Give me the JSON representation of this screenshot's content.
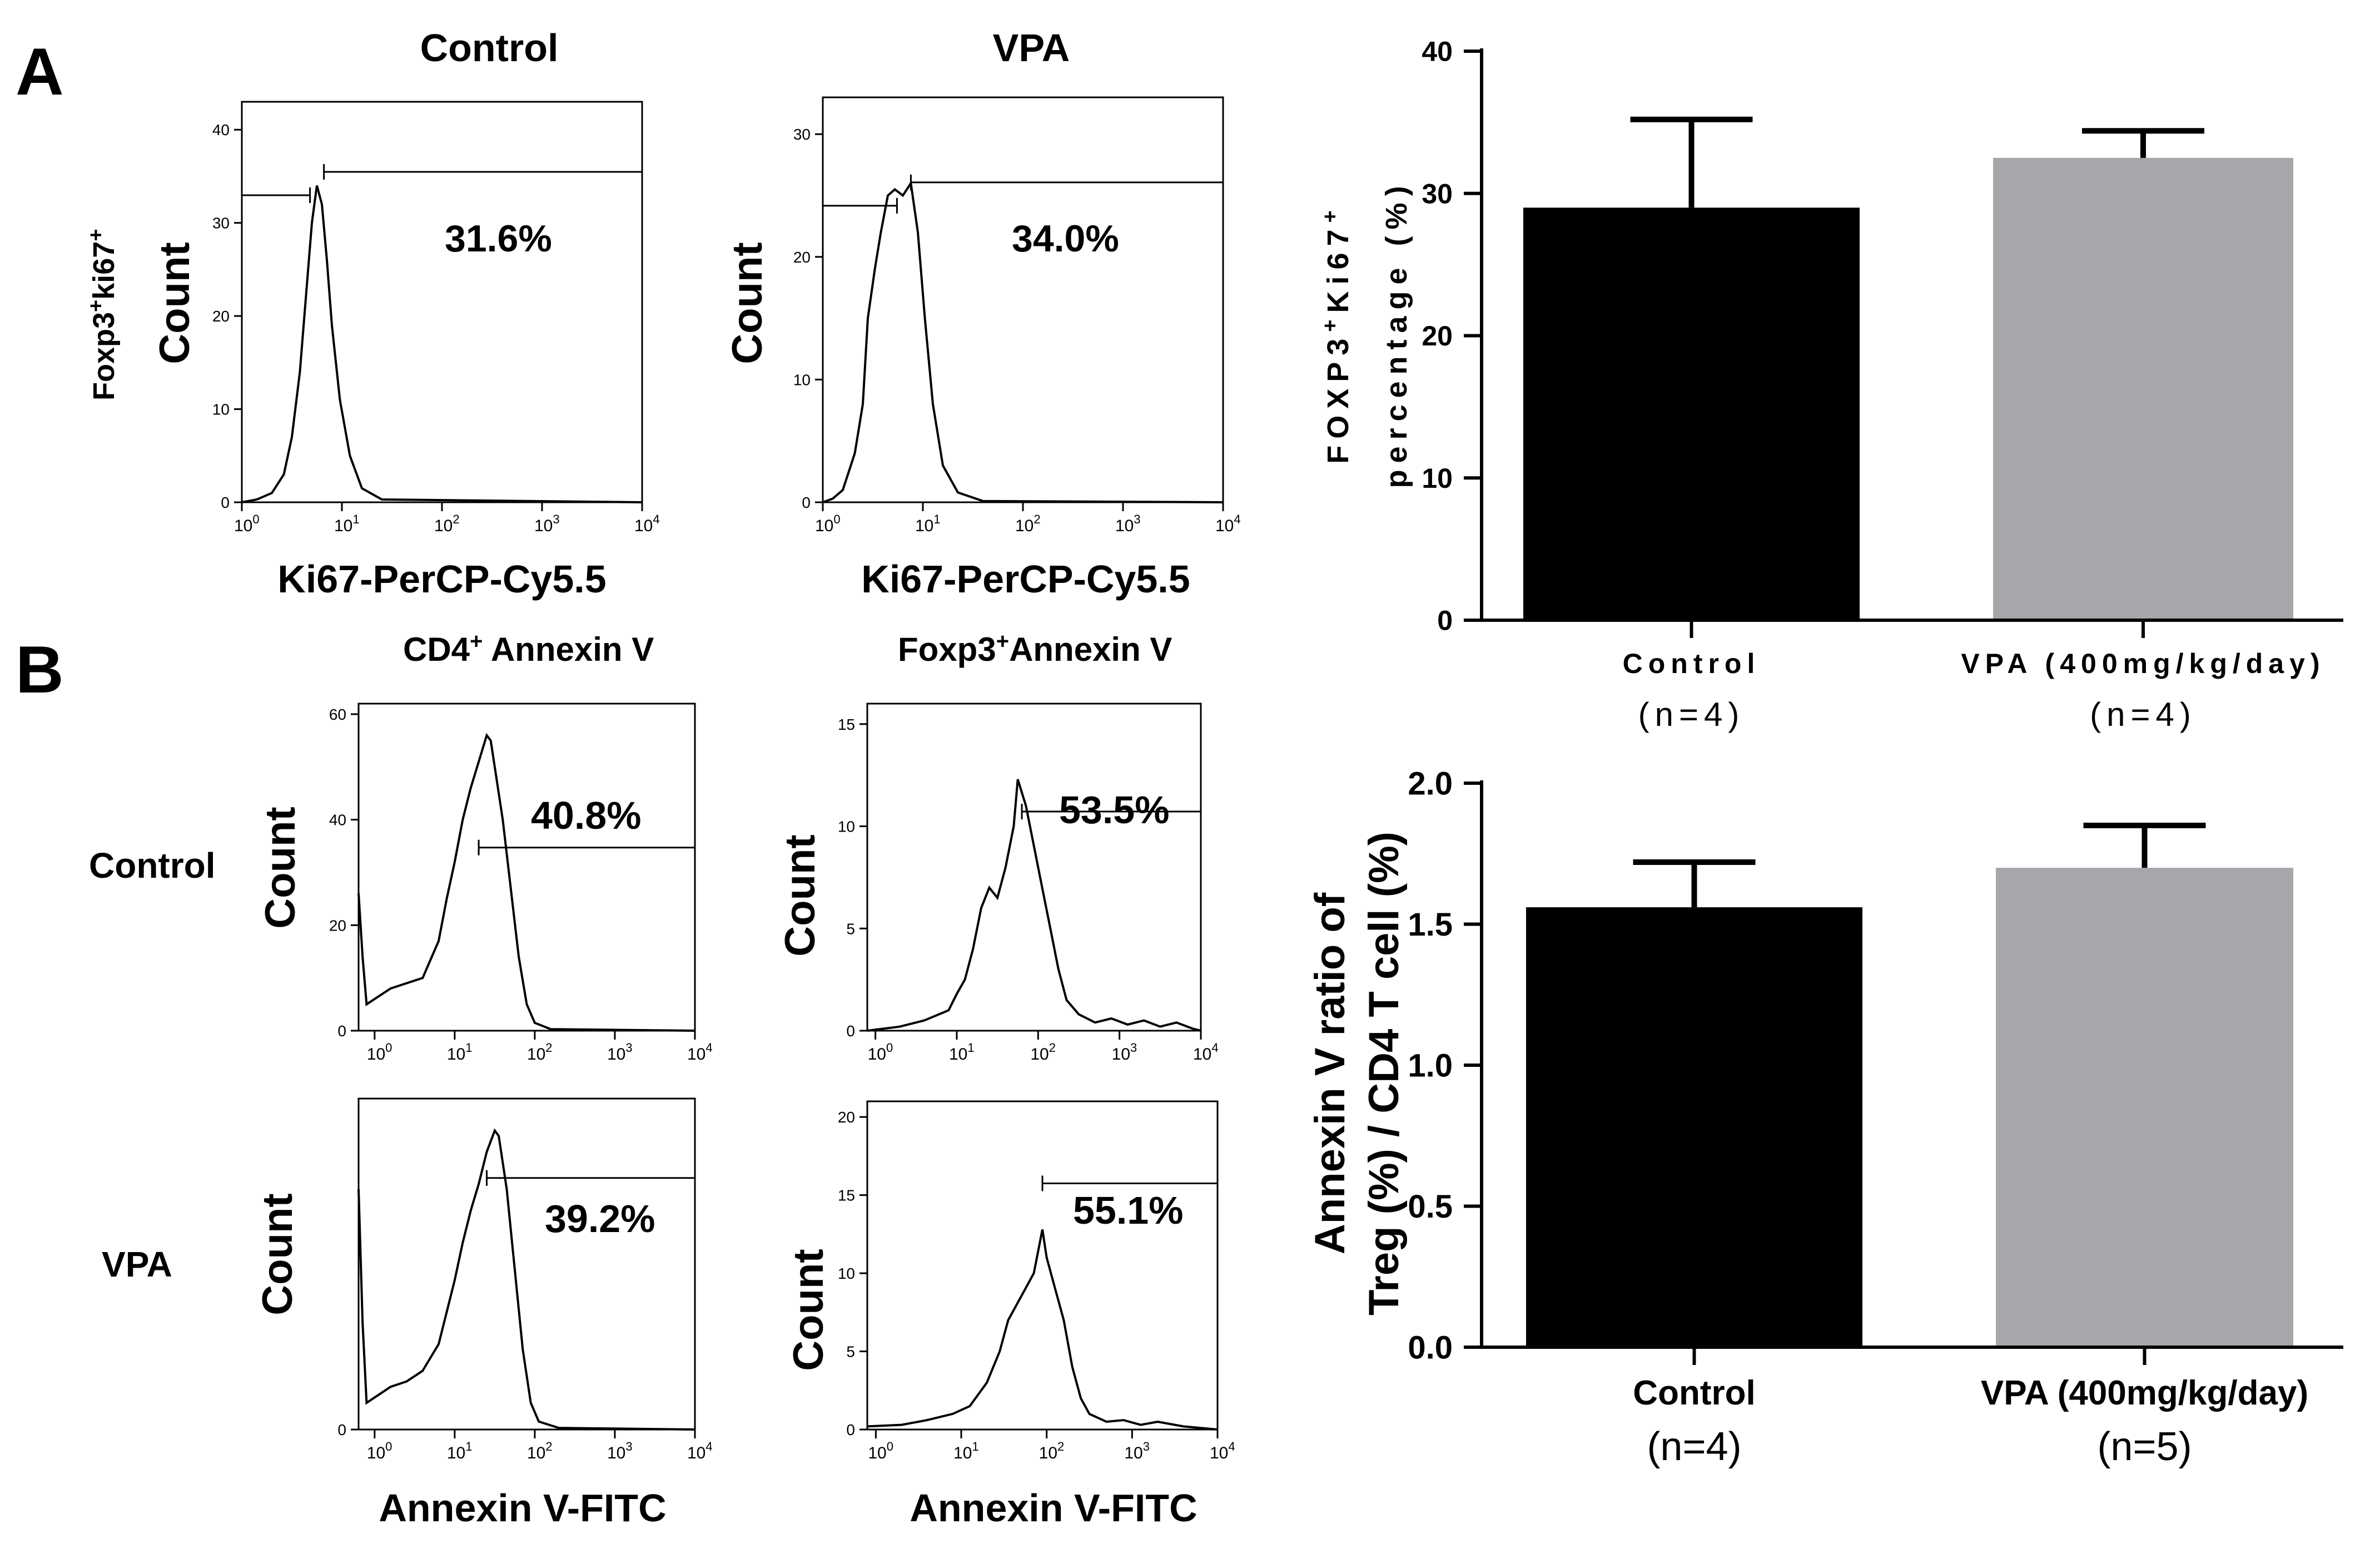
{
  "panel_labels": {
    "a": "A",
    "b": "B"
  },
  "colors": {
    "black_bar": "#000000",
    "grey_bar": "#a7a6ab",
    "line": "#000000"
  },
  "row_a": {
    "ylabel_line1": "Foxp3",
    "ylabel_sup1": "+",
    "ylabel_line2": "ki67",
    "ylabel_sup2": "+"
  },
  "row_b": {
    "row_label_control": "Control",
    "row_label_vpa": "VPA",
    "col_title_cd4": "CD4",
    "col_title_cd4_sup": "+",
    "col_title_cd4_rest": " Annexin V",
    "col_title_foxp3": "Foxp3",
    "col_title_foxp3_sup": "+",
    "col_title_foxp3_rest": "Annexin V"
  },
  "chart_data": [
    {
      "id": "hist-a-control",
      "type": "histogram",
      "title": "Control",
      "xlabel": "Ki67-PerCP-Cy5.5",
      "ylabel": "Count",
      "gate_percent": "31.6%",
      "x_ticks": [
        "10",
        "10",
        "10",
        "10",
        "10"
      ],
      "x_tick_exps": [
        "0",
        "1",
        "2",
        "3",
        "4"
      ],
      "y_ticks": [
        "0",
        "10",
        "20",
        "30",
        "40"
      ],
      "xlim_log": [
        0,
        4
      ],
      "ylim": [
        0,
        43
      ],
      "gate_start_log": 0.82,
      "peak_log": 0.75,
      "peak_count": 34,
      "curve": [
        [
          0,
          0
        ],
        [
          0.15,
          0.3
        ],
        [
          0.3,
          1
        ],
        [
          0.42,
          3
        ],
        [
          0.5,
          7
        ],
        [
          0.58,
          14
        ],
        [
          0.64,
          22
        ],
        [
          0.7,
          30
        ],
        [
          0.75,
          34
        ],
        [
          0.8,
          32
        ],
        [
          0.85,
          26
        ],
        [
          0.9,
          19
        ],
        [
          0.98,
          11
        ],
        [
          1.08,
          5
        ],
        [
          1.2,
          1.5
        ],
        [
          1.4,
          0.3
        ],
        [
          4,
          0
        ]
      ]
    },
    {
      "id": "hist-a-vpa",
      "type": "histogram",
      "title": "VPA",
      "xlabel": "Ki67-PerCP-Cy5.5",
      "ylabel": "Count",
      "gate_percent": "34.0%",
      "x_ticks": [
        "10",
        "10",
        "10",
        "10",
        "10"
      ],
      "x_tick_exps": [
        "0",
        "1",
        "2",
        "3",
        "4"
      ],
      "y_ticks": [
        "0",
        "10",
        "20",
        "30"
      ],
      "xlim_log": [
        0,
        4
      ],
      "ylim": [
        0,
        33
      ],
      "gate_start_log": 0.88,
      "peak_log": 0.85,
      "peak_count": 26,
      "curve": [
        [
          0,
          0
        ],
        [
          0.1,
          0.3
        ],
        [
          0.2,
          1
        ],
        [
          0.32,
          4
        ],
        [
          0.4,
          8
        ],
        [
          0.45,
          15
        ],
        [
          0.52,
          19
        ],
        [
          0.58,
          22
        ],
        [
          0.65,
          25
        ],
        [
          0.72,
          25.5
        ],
        [
          0.8,
          25
        ],
        [
          0.88,
          26
        ],
        [
          0.95,
          22
        ],
        [
          1.02,
          15
        ],
        [
          1.1,
          8
        ],
        [
          1.2,
          3
        ],
        [
          1.35,
          0.8
        ],
        [
          1.6,
          0.1
        ],
        [
          4,
          0
        ]
      ]
    },
    {
      "id": "hist-b-cd4-control",
      "type": "histogram",
      "ylabel": "Count",
      "gate_percent": "40.8%",
      "x_ticks": [
        "10",
        "10",
        "10",
        "10",
        "10"
      ],
      "x_tick_exps": [
        "0",
        "1",
        "2",
        "3",
        "4"
      ],
      "y_ticks": [
        "0",
        "20",
        "40",
        "60"
      ],
      "xlim_log": [
        -0.2,
        4
      ],
      "ylim": [
        0,
        62
      ],
      "gate_start_log": 1.3,
      "curve": [
        [
          -0.2,
          26
        ],
        [
          -0.15,
          14
        ],
        [
          -0.1,
          5
        ],
        [
          0,
          6
        ],
        [
          0.2,
          8
        ],
        [
          0.4,
          9
        ],
        [
          0.6,
          10
        ],
        [
          0.8,
          17
        ],
        [
          0.9,
          25
        ],
        [
          1.0,
          32
        ],
        [
          1.1,
          40
        ],
        [
          1.2,
          46
        ],
        [
          1.3,
          51
        ],
        [
          1.4,
          56
        ],
        [
          1.45,
          55
        ],
        [
          1.5,
          50
        ],
        [
          1.6,
          40
        ],
        [
          1.7,
          27
        ],
        [
          1.8,
          14
        ],
        [
          1.9,
          5
        ],
        [
          2.0,
          1.5
        ],
        [
          2.2,
          0.3
        ],
        [
          4,
          0
        ]
      ]
    },
    {
      "id": "hist-b-foxp3-control",
      "type": "histogram",
      "ylabel": "Count",
      "gate_percent": "53.5%",
      "x_ticks": [
        "10",
        "10",
        "10",
        "10",
        "10"
      ],
      "x_tick_exps": [
        "0",
        "1",
        "2",
        "3",
        "4"
      ],
      "y_ticks": [
        "0",
        "5",
        "10",
        "15"
      ],
      "xlim_log": [
        -0.1,
        4
      ],
      "ylim": [
        0,
        16
      ],
      "gate_start_log": 1.8,
      "curve": [
        [
          -0.1,
          0
        ],
        [
          0.3,
          0.2
        ],
        [
          0.6,
          0.5
        ],
        [
          0.9,
          1
        ],
        [
          1.0,
          1.8
        ],
        [
          1.1,
          2.5
        ],
        [
          1.2,
          4
        ],
        [
          1.3,
          6
        ],
        [
          1.4,
          7
        ],
        [
          1.5,
          6.5
        ],
        [
          1.6,
          8
        ],
        [
          1.7,
          10
        ],
        [
          1.75,
          12.3
        ],
        [
          1.85,
          11
        ],
        [
          1.95,
          9
        ],
        [
          2.05,
          7
        ],
        [
          2.15,
          5
        ],
        [
          2.25,
          3
        ],
        [
          2.35,
          1.5
        ],
        [
          2.5,
          0.8
        ],
        [
          2.7,
          0.4
        ],
        [
          2.9,
          0.6
        ],
        [
          3.1,
          0.3
        ],
        [
          3.3,
          0.5
        ],
        [
          3.5,
          0.2
        ],
        [
          3.7,
          0.4
        ],
        [
          3.9,
          0.1
        ],
        [
          4,
          0
        ]
      ]
    },
    {
      "id": "hist-b-cd4-vpa",
      "type": "histogram",
      "ylabel": "Count",
      "gate_percent": "39.2%",
      "xlabel": "Annexin V-FITC",
      "x_ticks": [
        "10",
        "10",
        "10",
        "10",
        "10"
      ],
      "x_tick_exps": [
        "0",
        "1",
        "2",
        "3",
        "4"
      ],
      "y_ticks": [
        "0"
      ],
      "xlim_log": [
        -0.2,
        4
      ],
      "ylim": [
        0,
        62
      ],
      "gate_start_log": 1.4,
      "curve": [
        [
          -0.2,
          45
        ],
        [
          -0.15,
          20
        ],
        [
          -0.1,
          5
        ],
        [
          0,
          6
        ],
        [
          0.2,
          8
        ],
        [
          0.4,
          9
        ],
        [
          0.6,
          11
        ],
        [
          0.8,
          16
        ],
        [
          0.9,
          22
        ],
        [
          1.0,
          28
        ],
        [
          1.1,
          35
        ],
        [
          1.2,
          41
        ],
        [
          1.3,
          46
        ],
        [
          1.4,
          52
        ],
        [
          1.5,
          56
        ],
        [
          1.55,
          55
        ],
        [
          1.65,
          45
        ],
        [
          1.75,
          30
        ],
        [
          1.85,
          15
        ],
        [
          1.95,
          5
        ],
        [
          2.05,
          1.5
        ],
        [
          2.3,
          0.3
        ],
        [
          4,
          0
        ]
      ]
    },
    {
      "id": "hist-b-foxp3-vpa",
      "type": "histogram",
      "ylabel": "Count",
      "gate_percent": "55.1%",
      "xlabel": "Annexin V-FITC",
      "x_ticks": [
        "10",
        "10",
        "10",
        "10",
        "10"
      ],
      "x_tick_exps": [
        "0",
        "1",
        "2",
        "3",
        "4"
      ],
      "y_ticks": [
        "0",
        "5",
        "10",
        "15",
        "20"
      ],
      "xlim_log": [
        -0.1,
        4
      ],
      "ylim": [
        0,
        21
      ],
      "gate_start_log": 1.95,
      "curve": [
        [
          -0.1,
          0.2
        ],
        [
          0.3,
          0.3
        ],
        [
          0.6,
          0.6
        ],
        [
          0.9,
          1
        ],
        [
          1.1,
          1.5
        ],
        [
          1.3,
          3
        ],
        [
          1.45,
          5
        ],
        [
          1.55,
          7
        ],
        [
          1.65,
          8
        ],
        [
          1.75,
          9
        ],
        [
          1.85,
          10
        ],
        [
          1.95,
          12.8
        ],
        [
          2.0,
          11
        ],
        [
          2.1,
          9
        ],
        [
          2.2,
          7
        ],
        [
          2.3,
          4
        ],
        [
          2.4,
          2
        ],
        [
          2.5,
          1
        ],
        [
          2.7,
          0.5
        ],
        [
          2.9,
          0.6
        ],
        [
          3.1,
          0.3
        ],
        [
          3.3,
          0.5
        ],
        [
          3.6,
          0.2
        ],
        [
          4,
          0
        ]
      ]
    },
    {
      "id": "bar-ki67",
      "type": "bar",
      "ylabel_line1": "FOXP3",
      "ylabel_sup1": "+",
      "ylabel_mid": "Ki67",
      "ylabel_sup2": "+",
      "ylabel_line2": "percentage (%)",
      "categories": [
        "Control",
        "VPA (400mg/kg/day)"
      ],
      "n_labels": [
        "(n=4)",
        "(n=4)"
      ],
      "values": [
        29,
        32.5
      ],
      "errors": [
        6.2,
        1.9
      ],
      "ylim": [
        0,
        40
      ],
      "y_ticks": [
        "0",
        "10",
        "20",
        "30",
        "40"
      ],
      "y_tick_values": [
        0,
        10,
        20,
        30,
        40
      ]
    },
    {
      "id": "bar-annexin",
      "type": "bar",
      "ylabel_line1": "Annexin V ratio of",
      "ylabel_line2": "Treg (%) / CD4 T cell (%)",
      "categories": [
        "Control",
        "VPA (400mg/kg/day)"
      ],
      "n_labels": [
        "(n=4)",
        "(n=5)"
      ],
      "values": [
        1.56,
        1.7
      ],
      "errors": [
        0.16,
        0.15
      ],
      "ylim": [
        0,
        2.0
      ],
      "y_ticks": [
        "0.0",
        "0.5",
        "1.0",
        "1.5",
        "2.0"
      ],
      "y_tick_values": [
        0,
        0.5,
        1.0,
        1.5,
        2.0
      ]
    }
  ]
}
